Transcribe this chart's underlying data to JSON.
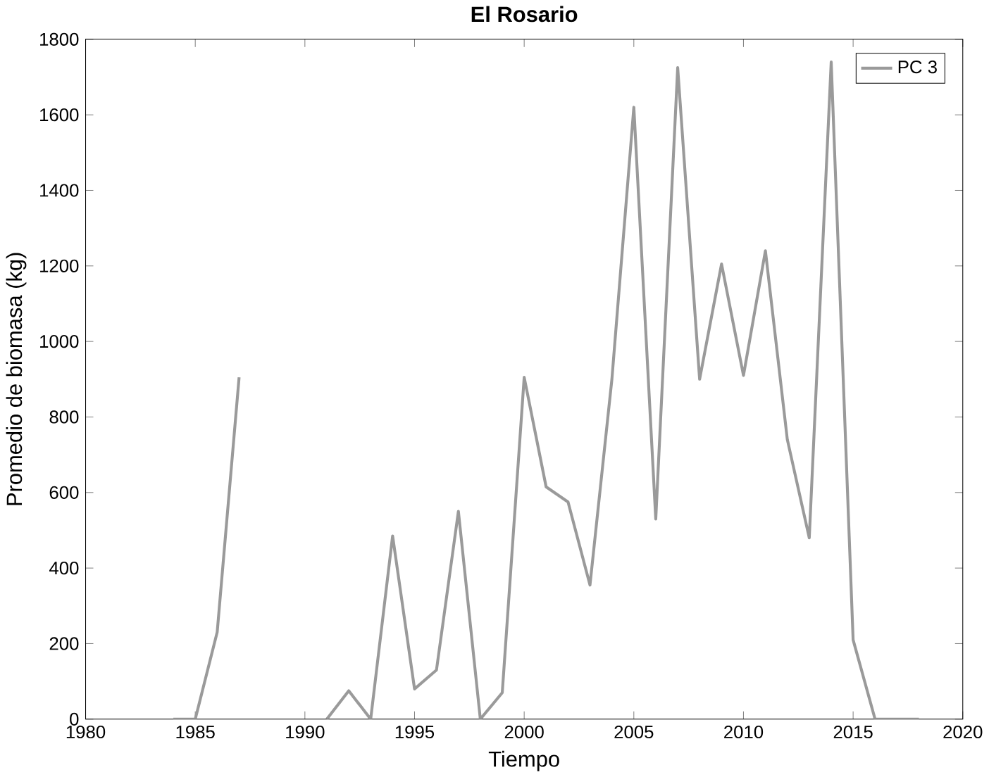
{
  "chart_data": {
    "type": "line",
    "title": "El Rosario",
    "xlabel": "Tiempo",
    "ylabel": "Promedio de biomasa (kg)",
    "x": [
      1984,
      1985,
      1986,
      1987,
      1988,
      1989,
      1990,
      1991,
      1992,
      1993,
      1994,
      1995,
      1996,
      1997,
      1998,
      1999,
      2000,
      2001,
      2002,
      2003,
      2004,
      2005,
      2006,
      2007,
      2008,
      2009,
      2010,
      2011,
      2012,
      2013,
      2014,
      2015,
      2016,
      2017,
      2018
    ],
    "series": [
      {
        "name": "PC 3",
        "color": "#9a9a9a",
        "values": [
          0,
          0,
          230,
          905,
          null,
          null,
          null,
          0,
          75,
          0,
          485,
          80,
          130,
          550,
          0,
          70,
          905,
          615,
          575,
          355,
          900,
          1620,
          530,
          1725,
          900,
          1205,
          910,
          1240,
          740,
          480,
          1740,
          210,
          0,
          0,
          0
        ]
      }
    ],
    "xlim": [
      1980,
      2020
    ],
    "ylim": [
      0,
      1800
    ],
    "xticks": [
      1980,
      1985,
      1990,
      1995,
      2000,
      2005,
      2010,
      2015,
      2020
    ],
    "yticks": [
      0,
      200,
      400,
      600,
      800,
      1000,
      1200,
      1400,
      1600,
      1800
    ],
    "legend": "top right",
    "grid": false,
    "marker": "none",
    "line_style": "solid"
  }
}
